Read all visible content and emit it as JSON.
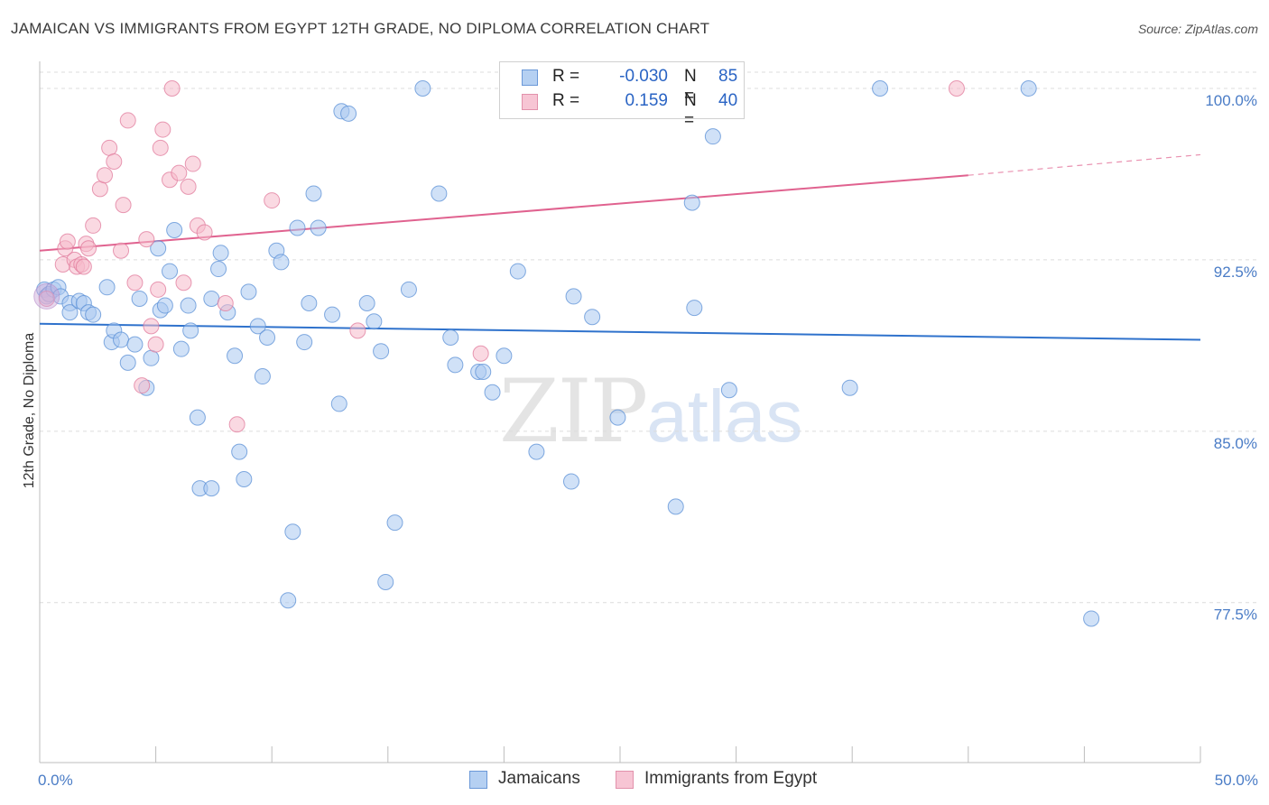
{
  "title": "JAMAICAN VS IMMIGRANTS FROM EGYPT 12TH GRADE, NO DIPLOMA CORRELATION CHART",
  "source": "Source: ZipAtlas.com",
  "watermark": {
    "zip": "ZIP",
    "atlas": "atlas"
  },
  "legend_top": {
    "rows": [
      {
        "r_label": "R =",
        "r_value": "-0.030",
        "n_label": "N =",
        "n_value": "85",
        "color": "#a9c8f0",
        "stroke": "#5a8fd6"
      },
      {
        "r_label": "R =",
        "r_value": "0.159",
        "n_label": "N =",
        "n_value": "40",
        "color": "#f6b9cb",
        "stroke": "#e07a9b"
      }
    ]
  },
  "legend_bottom": [
    {
      "label": "Jamaicans",
      "color": "#b5d0f2",
      "stroke": "#6a98d8"
    },
    {
      "label": "Immigrants from Egypt",
      "color": "#f7c5d4",
      "stroke": "#e291ab"
    }
  ],
  "chart_data": {
    "type": "scatter",
    "title": "JAMAICAN VS IMMIGRANTS FROM EGYPT 12TH GRADE, NO DIPLOMA CORRELATION CHART",
    "xlabel": "",
    "ylabel": "12th Grade, No Diploma",
    "xlim": [
      0,
      50
    ],
    "ylim": [
      70.5,
      101.5
    ],
    "x_tick_labels": [
      {
        "value": 0,
        "label": "0.0%"
      },
      {
        "value": 50,
        "label": "50.0%"
      }
    ],
    "y_ticks": [
      {
        "value": 100,
        "label": "100.0%"
      },
      {
        "value": 92.5,
        "label": "92.5%"
      },
      {
        "value": 85,
        "label": "85.0%"
      },
      {
        "value": 77.5,
        "label": "77.5%"
      }
    ],
    "grid": true,
    "series": [
      {
        "name": "Jamaicans",
        "color": "#a9c8f0",
        "stroke": "#5a8fd6",
        "trend": {
          "x0": 0,
          "y0": 89.7,
          "x1": 50,
          "y1": 89.0,
          "color": "#2f72cc"
        },
        "points": [
          [
            0.2,
            91.2
          ],
          [
            0.3,
            90.9
          ],
          [
            0.4,
            91.0
          ],
          [
            0.6,
            91.2
          ],
          [
            0.8,
            91.3
          ],
          [
            0.9,
            90.9
          ],
          [
            1.3,
            90.6
          ],
          [
            1.3,
            90.2
          ],
          [
            1.7,
            90.7
          ],
          [
            1.9,
            90.6
          ],
          [
            2.1,
            90.2
          ],
          [
            2.3,
            90.1
          ],
          [
            2.9,
            91.3
          ],
          [
            3.1,
            88.9
          ],
          [
            3.2,
            89.4
          ],
          [
            3.5,
            89.0
          ],
          [
            3.8,
            88.0
          ],
          [
            4.1,
            88.8
          ],
          [
            4.3,
            90.8
          ],
          [
            4.6,
            86.9
          ],
          [
            4.8,
            88.2
          ],
          [
            5.1,
            93.0
          ],
          [
            5.2,
            90.3
          ],
          [
            5.4,
            90.5
          ],
          [
            5.6,
            92.0
          ],
          [
            5.8,
            93.8
          ],
          [
            6.1,
            88.6
          ],
          [
            6.4,
            90.5
          ],
          [
            6.5,
            89.4
          ],
          [
            6.8,
            85.6
          ],
          [
            6.9,
            82.5
          ],
          [
            7.4,
            82.5
          ],
          [
            7.4,
            90.8
          ],
          [
            7.7,
            92.1
          ],
          [
            7.8,
            92.8
          ],
          [
            8.1,
            90.2
          ],
          [
            8.4,
            88.3
          ],
          [
            8.6,
            84.1
          ],
          [
            8.8,
            82.9
          ],
          [
            9.0,
            91.1
          ],
          [
            9.4,
            89.6
          ],
          [
            9.6,
            87.4
          ],
          [
            9.8,
            89.1
          ],
          [
            10.2,
            92.9
          ],
          [
            10.4,
            92.4
          ],
          [
            10.7,
            77.6
          ],
          [
            10.9,
            80.6
          ],
          [
            11.1,
            93.9
          ],
          [
            11.4,
            88.9
          ],
          [
            11.6,
            90.6
          ],
          [
            11.8,
            95.4
          ],
          [
            12.0,
            93.9
          ],
          [
            12.6,
            90.1
          ],
          [
            12.9,
            86.2
          ],
          [
            13.0,
            99.0
          ],
          [
            13.3,
            98.9
          ],
          [
            14.1,
            90.6
          ],
          [
            14.4,
            89.8
          ],
          [
            14.7,
            88.5
          ],
          [
            14.9,
            78.4
          ],
          [
            15.3,
            81.0
          ],
          [
            15.9,
            91.2
          ],
          [
            16.5,
            100.0
          ],
          [
            17.2,
            95.4
          ],
          [
            17.7,
            89.1
          ],
          [
            17.9,
            87.9
          ],
          [
            18.9,
            87.6
          ],
          [
            19.1,
            87.6
          ],
          [
            19.5,
            86.7
          ],
          [
            20.0,
            88.3
          ],
          [
            20.6,
            92.0
          ],
          [
            21.4,
            84.1
          ],
          [
            22.9,
            82.8
          ],
          [
            23.0,
            90.9
          ],
          [
            23.8,
            90.0
          ],
          [
            24.9,
            85.6
          ],
          [
            27.4,
            81.7
          ],
          [
            28.1,
            95.0
          ],
          [
            28.2,
            90.4
          ],
          [
            29.0,
            97.9
          ],
          [
            29.7,
            86.8
          ],
          [
            34.9,
            86.9
          ],
          [
            36.2,
            100.0
          ],
          [
            42.6,
            100.0
          ],
          [
            45.3,
            76.8
          ]
        ]
      },
      {
        "name": "Immigrants from Egypt",
        "color": "#f6b9cb",
        "stroke": "#e07a9b",
        "trend": {
          "x0": 0,
          "y0": 92.9,
          "x1": 40,
          "y1": 96.2,
          "x_dash_end": 50,
          "y_dash_end": 97.1,
          "color": "#e0628f"
        },
        "points": [
          [
            0.3,
            90.8
          ],
          [
            1.0,
            92.3
          ],
          [
            1.1,
            93.0
          ],
          [
            1.2,
            93.3
          ],
          [
            1.5,
            92.5
          ],
          [
            1.6,
            92.2
          ],
          [
            1.8,
            92.3
          ],
          [
            1.9,
            92.2
          ],
          [
            2.0,
            93.2
          ],
          [
            2.1,
            93.0
          ],
          [
            2.3,
            94.0
          ],
          [
            2.6,
            95.6
          ],
          [
            2.8,
            96.2
          ],
          [
            3.0,
            97.4
          ],
          [
            3.2,
            96.8
          ],
          [
            3.5,
            92.9
          ],
          [
            3.6,
            94.9
          ],
          [
            3.8,
            98.6
          ],
          [
            4.1,
            91.5
          ],
          [
            4.4,
            87.0
          ],
          [
            4.6,
            93.4
          ],
          [
            4.8,
            89.6
          ],
          [
            5.0,
            88.8
          ],
          [
            5.1,
            91.2
          ],
          [
            5.2,
            97.4
          ],
          [
            5.3,
            98.2
          ],
          [
            5.6,
            96.0
          ],
          [
            5.7,
            100.0
          ],
          [
            6.0,
            96.3
          ],
          [
            6.2,
            91.5
          ],
          [
            6.4,
            95.7
          ],
          [
            6.6,
            96.7
          ],
          [
            6.8,
            94.0
          ],
          [
            7.1,
            93.7
          ],
          [
            8.0,
            90.6
          ],
          [
            8.5,
            85.3
          ],
          [
            10.0,
            95.1
          ],
          [
            13.7,
            89.4
          ],
          [
            19.0,
            88.4
          ],
          [
            39.5,
            100.0
          ]
        ]
      }
    ]
  }
}
